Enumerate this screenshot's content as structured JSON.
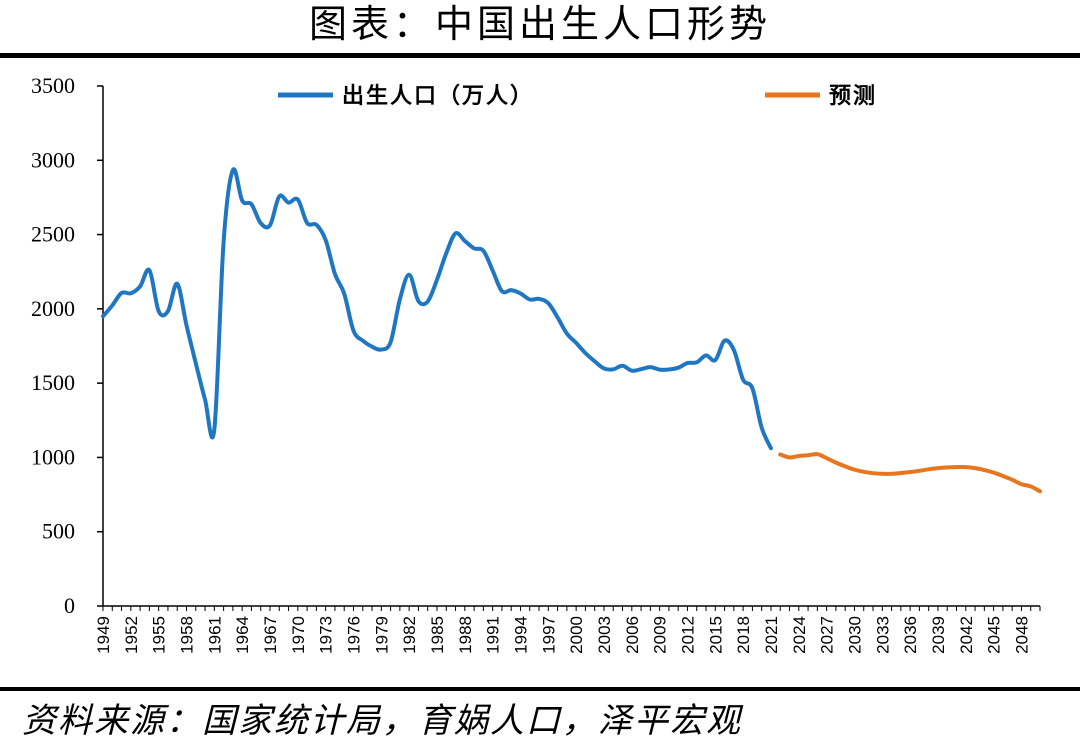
{
  "page": {
    "title": "图表：中国出生人口形势",
    "source": "资料来源：国家统计局，育娲人口，泽平宏观"
  },
  "chart_data": {
    "type": "line",
    "title": "图表：中国出生人口形势",
    "xlabel": "",
    "ylabel": "",
    "ylim": [
      0,
      3500
    ],
    "yticks": [
      0,
      500,
      1000,
      1500,
      2000,
      2500,
      3000,
      3500
    ],
    "x_tick_labels": [
      "1949",
      "1952",
      "1955",
      "1958",
      "1961",
      "1964",
      "1967",
      "1970",
      "1973",
      "1976",
      "1979",
      "1982",
      "1985",
      "1988",
      "1991",
      "1994",
      "1997",
      "2000",
      "2003",
      "2006",
      "2009",
      "2012",
      "2015",
      "2018",
      "2021",
      "2024",
      "2027",
      "2030",
      "2033",
      "2036",
      "2039",
      "2042",
      "2045",
      "2048"
    ],
    "x_range": [
      1949,
      2050
    ],
    "grid": false,
    "legend_position": "top",
    "colors": {
      "births": "#1f77c4",
      "forecast": "#e8761f"
    },
    "series": [
      {
        "name": "出生人口（万人）",
        "key": "births",
        "x": [
          1949,
          1950,
          1951,
          1952,
          1953,
          1954,
          1955,
          1956,
          1957,
          1958,
          1959,
          1960,
          1961,
          1962,
          1963,
          1964,
          1965,
          1966,
          1967,
          1968,
          1969,
          1970,
          1971,
          1972,
          1973,
          1974,
          1975,
          1976,
          1977,
          1978,
          1979,
          1980,
          1981,
          1982,
          1983,
          1984,
          1985,
          1986,
          1987,
          1988,
          1989,
          1990,
          1991,
          1992,
          1993,
          1994,
          1995,
          1996,
          1997,
          1998,
          1999,
          2000,
          2001,
          2002,
          2003,
          2004,
          2005,
          2006,
          2007,
          2008,
          2009,
          2010,
          2011,
          2012,
          2013,
          2014,
          2015,
          2016,
          2017,
          2018,
          2019,
          2020,
          2021
        ],
        "values": [
          1950,
          2023,
          2107,
          2105,
          2151,
          2260,
          1984,
          1985,
          2169,
          1889,
          1635,
          1389,
          1189,
          2451,
          2934,
          2729,
          2704,
          2577,
          2563,
          2757,
          2715,
          2736,
          2578,
          2566,
          2463,
          2235,
          2102,
          1853,
          1786,
          1745,
          1726,
          1776,
          2064,
          2230,
          2052,
          2050,
          2196,
          2374,
          2508,
          2457,
          2407,
          2391,
          2258,
          2119,
          2126,
          2104,
          2063,
          2067,
          2038,
          1942,
          1834,
          1771,
          1702,
          1647,
          1599,
          1593,
          1617,
          1584,
          1594,
          1608,
          1591,
          1592,
          1604,
          1635,
          1640,
          1687,
          1655,
          1786,
          1723,
          1523,
          1465,
          1200,
          1062
        ]
      },
      {
        "name": "预测",
        "key": "forecast",
        "x": [
          2022,
          2023,
          2024,
          2025,
          2026,
          2027,
          2028,
          2029,
          2030,
          2031,
          2032,
          2033,
          2034,
          2035,
          2036,
          2037,
          2038,
          2039,
          2040,
          2041,
          2042,
          2043,
          2044,
          2045,
          2046,
          2047,
          2048,
          2049,
          2050
        ],
        "values": [
          1020,
          1000,
          1010,
          1015,
          1022,
          995,
          965,
          940,
          918,
          903,
          894,
          890,
          890,
          895,
          902,
          910,
          920,
          928,
          933,
          935,
          935,
          928,
          915,
          898,
          875,
          850,
          820,
          805,
          772
        ]
      }
    ]
  }
}
